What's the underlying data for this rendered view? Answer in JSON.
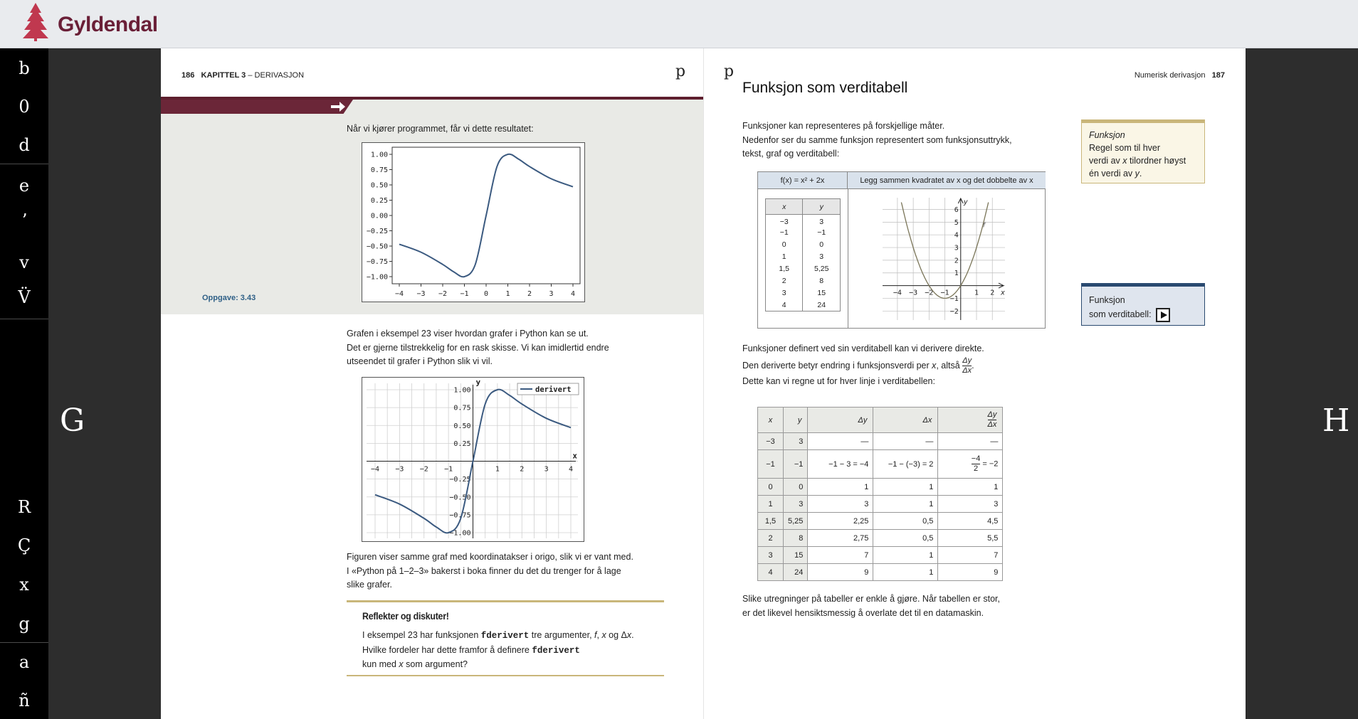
{
  "app": {
    "brand": "Gyldendal"
  },
  "sidebar": {
    "items": [
      "b",
      "0",
      "d",
      "e",
      "ʼ",
      "v",
      "V̈",
      "R",
      "Ç",
      "x",
      "g",
      "a",
      "ñ"
    ]
  },
  "nav": {
    "prev": "G",
    "next": "H"
  },
  "left_page": {
    "page_number": "186",
    "chapter": "KAPITTEL 3",
    "chapter_dash": "–",
    "chapter_title": "DERIVASJON",
    "pmark": "p",
    "intro": "Når vi kjører programmet, får vi dette resultatet:",
    "oppgave": "Oppgave: 3.43",
    "para1_l1": "Grafen i eksempel 23 viser hvordan grafer i Python kan se ut.",
    "para1_l2": "Det er gjerne tilstrekkelig for en rask skisse. Vi kan imidlertid endre",
    "para1_l3": "utseendet til grafer i Python slik vi vil.",
    "para2_l1": "Figuren viser samme graf med koordinatakser i origo, slik vi er vant med.",
    "para2_l2": "I «Python på 1–2–3» bakerst i boka finner du det du trenger for å lage",
    "para2_l3": "slike grafer.",
    "reflect": {
      "title": "Reflekter og diskuter!",
      "l1a": "I eksempel 23 har funksjonen ",
      "l1code": "fderivert",
      "l1b": " tre argumenter, ",
      "l1f": "f",
      "l1c": ", ",
      "l1x": "x",
      "l1d": " og Δ",
      "l1x2": "x",
      "l1e": ".",
      "l2a": "Hvilke fordeler har dette framfor å definere ",
      "l2code": "fderivert",
      "l3a": "kun med ",
      "l3x": "x",
      "l3b": " som argument?"
    }
  },
  "right_page": {
    "page_number": "187",
    "section": "Numerisk derivasjon",
    "pmark": "p",
    "title": "Funksjon som verditabell",
    "p1_l1": "Funksjoner kan representeres på forskjellige måter.",
    "p1_l2": "Nedenfor ser du samme funksjon representert som funksjonsuttrykk,",
    "p1_l3": "tekst, graf og verditabell:",
    "table1": {
      "formula": "f(x) = x² + 2x",
      "description": "Legg sammen kvadratet av x og det dobbelte av x",
      "col_x": "x",
      "col_y": "y",
      "rows": [
        [
          "−3",
          "3"
        ],
        [
          "−1",
          "−1"
        ],
        [
          "0",
          "0"
        ],
        [
          "1",
          "3"
        ],
        [
          "1,5",
          "5,25"
        ],
        [
          "2",
          "8"
        ],
        [
          "3",
          "15"
        ],
        [
          "4",
          "24"
        ]
      ]
    },
    "p2_l1": "Funksjoner definert ved sin verditabell kan vi derivere direkte.",
    "p2_l2a": "Den deriverte betyr endring i funksjonsverdi per ",
    "p2_l2x": "x",
    "p2_l2b": ", altså ",
    "p2_frac_num": "Δy",
    "p2_frac_den": "Δx",
    "p2_l3": "Dette kan vi regne ut for hver linje i verditabellen:",
    "table2": {
      "headers": [
        "x",
        "y",
        "Δy",
        "Δx"
      ],
      "header_frac_num": "Δy",
      "header_frac_den": "Δx",
      "rows": [
        [
          "−3",
          "3",
          "—",
          "—",
          "—"
        ],
        [
          "−1",
          "−1",
          "−1 − 3 = −4",
          "−1 − (−3) = 2",
          "−4/2 = −2"
        ],
        [
          "0",
          "0",
          "1",
          "1",
          "1"
        ],
        [
          "1",
          "3",
          "3",
          "1",
          "3"
        ],
        [
          "1,5",
          "5,25",
          "2,25",
          "0,5",
          "4,5"
        ],
        [
          "2",
          "8",
          "2,75",
          "0,5",
          "5,5"
        ],
        [
          "3",
          "15",
          "7",
          "1",
          "7"
        ],
        [
          "4",
          "24",
          "9",
          "1",
          "9"
        ]
      ],
      "special_num": "−4",
      "special_den": "2",
      "special_rest": " = −2"
    },
    "p3_l1": "Slike utregninger på tabeller er enkle å gjøre. Når tabellen er stor,",
    "p3_l2": "er det likevel hensiktsmessig å overlate det til en datamaskin.",
    "side_def": {
      "term": "Funksjon",
      "l1": "Regel som til hver",
      "l2a": "verdi av ",
      "l2x": "x",
      "l2b": " tilordner høyst",
      "l3a": "én verdi av ",
      "l3y": "y",
      "l3b": "."
    },
    "side_btn": {
      "l1": "Funksjon",
      "l2": "som verditabell:"
    }
  },
  "chart_data": [
    {
      "type": "line",
      "title": "",
      "x_ticks": [
        "−4",
        "−3",
        "−2",
        "−1",
        "0",
        "1",
        "2",
        "3",
        "4"
      ],
      "y_ticks": [
        "1.00",
        "0.75",
        "0.50",
        "0.25",
        "0.00",
        "−0.25",
        "−0.50",
        "−0.75",
        "−1.00"
      ],
      "xlim": [
        -4,
        4
      ],
      "ylim": [
        -1,
        1
      ],
      "series": [
        {
          "x": [
            -4,
            -3,
            -2,
            -1.5,
            -1,
            -0.5,
            0,
            0.5,
            1,
            1.5,
            2,
            3,
            4
          ],
          "y": [
            -0.47,
            -0.6,
            -0.8,
            -0.92,
            -1.0,
            -0.8,
            0,
            0.8,
            1.0,
            0.92,
            0.8,
            0.6,
            0.47
          ]
        }
      ]
    },
    {
      "type": "line",
      "legend": "derivert",
      "xlabel": "x",
      "ylabel": "y",
      "x_ticks": [
        "−4",
        "−3",
        "−2",
        "−1",
        "1",
        "2",
        "3",
        "4"
      ],
      "y_ticks": [
        "1.00",
        "0.75",
        "0.50",
        "0.25",
        "−0.25",
        "−0.50",
        "−0.75",
        "−1.00"
      ],
      "xlim": [
        -4,
        4
      ],
      "ylim": [
        -1,
        1
      ],
      "grid": true,
      "series": [
        {
          "name": "derivert",
          "x": [
            -4,
            -3,
            -2,
            -1.5,
            -1,
            -0.5,
            0,
            0.5,
            1,
            1.5,
            2,
            3,
            4
          ],
          "y": [
            -0.47,
            -0.6,
            -0.8,
            -0.92,
            -1.0,
            -0.8,
            0,
            0.8,
            1.0,
            0.92,
            0.8,
            0.6,
            0.47
          ]
        }
      ]
    },
    {
      "type": "line",
      "xlabel": "x",
      "ylabel": "y",
      "function_label": "f",
      "x_ticks": [
        "−4",
        "−3",
        "−2",
        "−1",
        "1",
        "2"
      ],
      "y_ticks": [
        "6",
        "5",
        "4",
        "3",
        "2",
        "1",
        "−1",
        "−2"
      ],
      "xlim": [
        -4,
        2.5
      ],
      "ylim": [
        -2,
        6.5
      ],
      "series": [
        {
          "x": [
            -3,
            -2,
            -1,
            0,
            1
          ],
          "y": [
            3,
            0,
            -1,
            0,
            3
          ]
        }
      ]
    }
  ]
}
